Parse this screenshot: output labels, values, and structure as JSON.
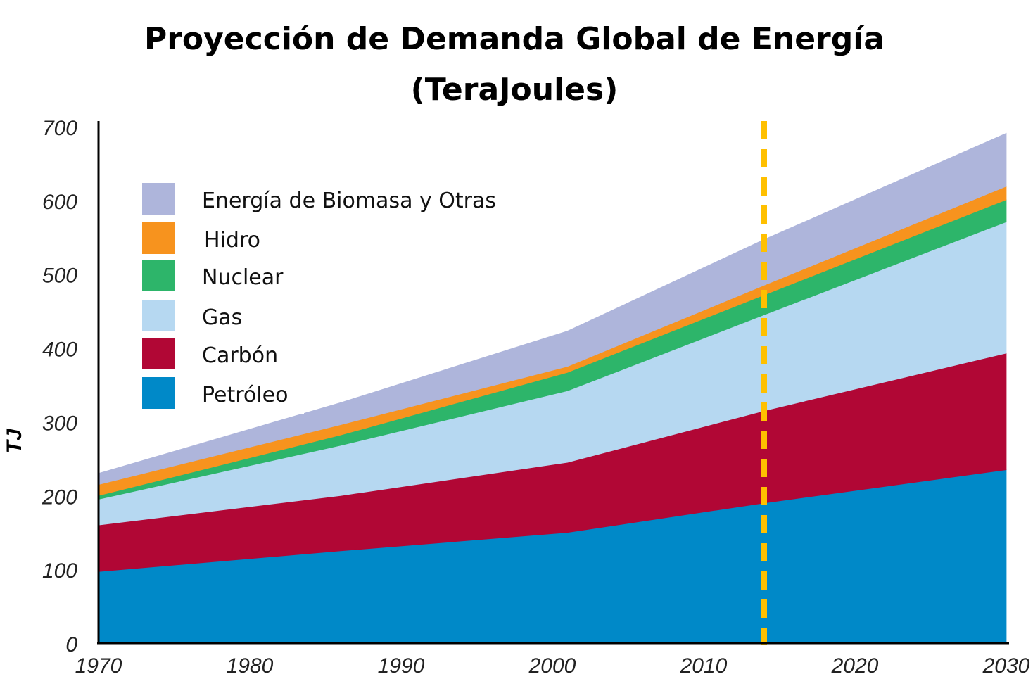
{
  "chart_data": {
    "type": "area",
    "stacked": true,
    "title_line1": "Proyección de Demanda Global de Energía",
    "title_line2": "(TeraJoules)",
    "ylabel": "TJ",
    "xlabel": "",
    "x": [
      1970,
      1986,
      2001,
      2014,
      2030
    ],
    "xlim": [
      1970,
      2030
    ],
    "ylim": [
      0,
      700
    ],
    "x_ticks": [
      "1970",
      "1980",
      "1990",
      "2000",
      "2010",
      "2020",
      "2030"
    ],
    "y_ticks": [
      "0",
      "100",
      "200",
      "300",
      "400",
      "500",
      "600",
      "700"
    ],
    "projection_marker_x": 2014,
    "series": [
      {
        "name": "Petróleo",
        "color": "#0089C8",
        "values": [
          97,
          125,
          150,
          190,
          235
        ]
      },
      {
        "name": "Carbón",
        "color": "#B10735",
        "values": [
          63,
          75,
          95,
          125,
          158
        ]
      },
      {
        "name": "Gas",
        "color": "#B6D8F1",
        "values": [
          35,
          68,
          97,
          130,
          178
        ]
      },
      {
        "name": "Nuclear",
        "color": "#2DB56A",
        "values": [
          5,
          14,
          25,
          27,
          30
        ]
      },
      {
        "name": "Hidro",
        "color": "#F7931E",
        "values": [
          15,
          14,
          8,
          13,
          18
        ]
      },
      {
        "name": "Energía de Biomasa y Otras",
        "color": "#AEB5DB",
        "values": [
          15,
          30,
          48,
          62,
          72
        ]
      }
    ],
    "legend_order": [
      "Energía de Biomasa y Otras",
      "Hidro",
      "Nuclear",
      "Gas",
      "Carbón",
      "Petróleo"
    ],
    "marker_color": "#FFC000"
  }
}
